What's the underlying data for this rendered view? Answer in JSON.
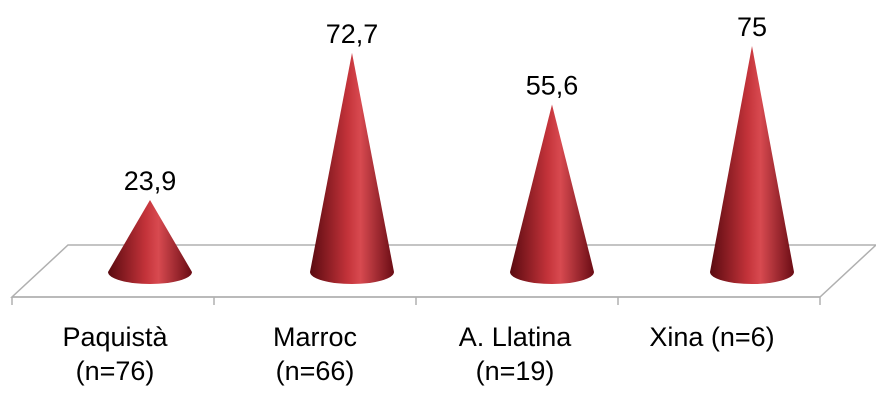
{
  "chart_data": {
    "type": "bar",
    "shape": "cone",
    "categories": [
      [
        "Paquistà",
        "(n=76)"
      ],
      [
        "Marroc",
        "(n=66)"
      ],
      [
        "A. Llatina",
        "(n=19)"
      ],
      [
        "Xina (n=6)"
      ]
    ],
    "values": [
      23.9,
      72.7,
      55.6,
      75
    ],
    "value_labels": [
      "23,9",
      "72,7",
      "55,6",
      "75"
    ],
    "title": "",
    "xlabel": "",
    "ylabel": "",
    "ylim": [
      0,
      75
    ],
    "grid": false,
    "legend": "none",
    "colors": {
      "cone_dark": "#5a0a10",
      "cone_mid": "#9e1820",
      "cone_light": "#d84a50",
      "floor": "#b0b0b0"
    }
  }
}
